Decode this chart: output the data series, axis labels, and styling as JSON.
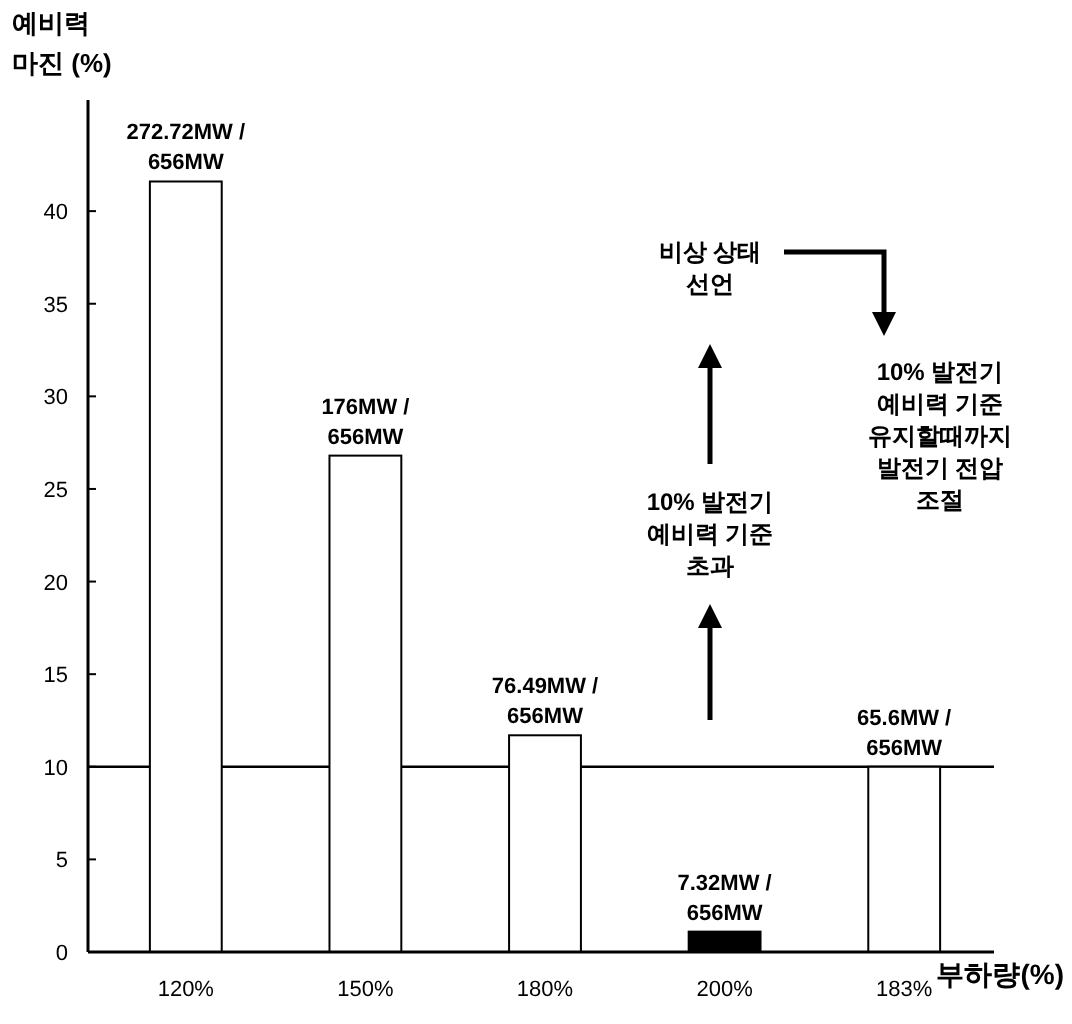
{
  "chart_data": {
    "type": "bar",
    "ylabel": "예비력\n마진 (%)",
    "xlabel": "부하량(%)",
    "categories": [
      "120%",
      "150%",
      "180%",
      "200%",
      "183%"
    ],
    "values": [
      41.6,
      26.8,
      11.7,
      1.1,
      10.0
    ],
    "colors": [
      "#ffffff",
      "#ffffff",
      "#ffffff",
      "#000000",
      "#ffffff"
    ],
    "ylim": [
      0,
      46
    ],
    "yticks": [
      0,
      5,
      10,
      15,
      20,
      25,
      30,
      35,
      40
    ],
    "ref_lines": [
      {
        "axis": "y",
        "value": 10,
        "color": "#000000"
      }
    ],
    "annotations": [
      "10% 발전기\n예비력 기준\n초과",
      "비상 상태\n선언",
      "10% 발전기\n예비력 기준\n유지할때까지\n발전기 전압\n조절",
      {
        "text": "272.72MW /\n656MW",
        "x": "120%",
        "y": 41.6
      },
      {
        "text": "176MW /\n656MW",
        "x": "150%",
        "y": 26.8
      },
      {
        "text": "76.49MW /\n656MW",
        "x": "180%",
        "y": 11.7
      },
      {
        "text": "7.32MW /\n656MW",
        "x": "200%",
        "y": 1.1
      },
      {
        "text": "65.6MW /\n656MW",
        "x": "183%",
        "y": 10.0
      }
    ],
    "grid": false
  }
}
